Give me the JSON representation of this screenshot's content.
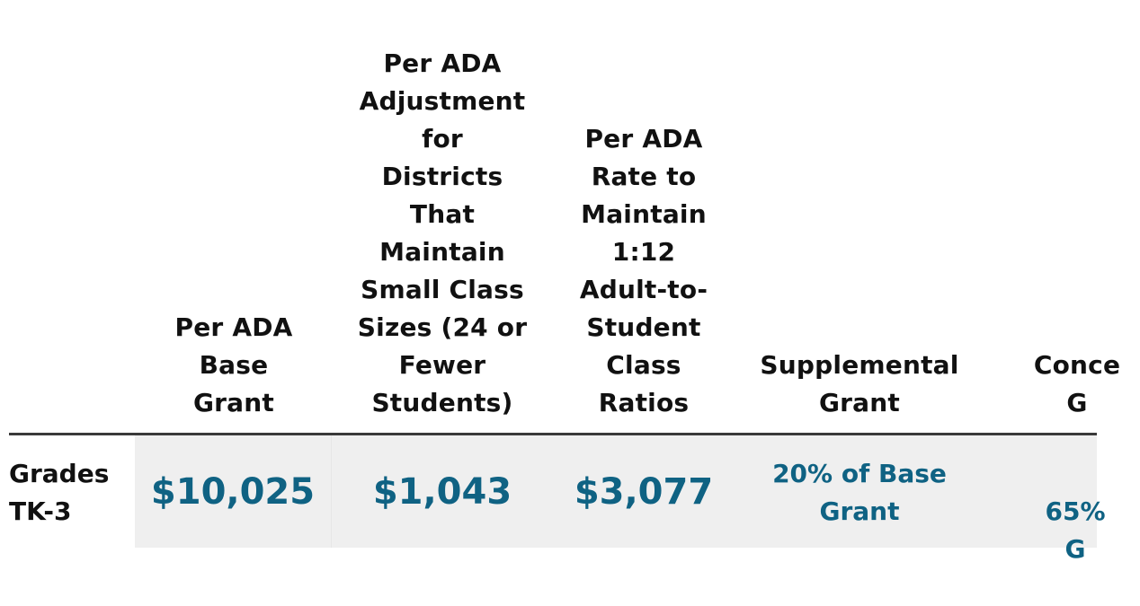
{
  "table": {
    "headers": [
      "Per ADA\nBase\nGrant",
      "Per ADA\nAdjustment\nfor\nDistricts\nThat\nMaintain\nSmall Class\nSizes (24 or\nFewer\nStudents)",
      "Per ADA\nRate to\nMaintain\n1:12\nAdult-to-\nStudent\nClass\nRatios",
      "Supplemental\nGrant",
      "Conce\nG"
    ],
    "rows": [
      {
        "label": "Grades\nTK-3",
        "values": [
          "$10,025",
          "$1,043",
          "$3,077",
          "20% of Base\nGrant",
          "65%\nG"
        ]
      }
    ]
  },
  "colors": {
    "value_text": "#0f6283",
    "cell_shade": "#efefef",
    "rule": "#3a3a3a"
  }
}
